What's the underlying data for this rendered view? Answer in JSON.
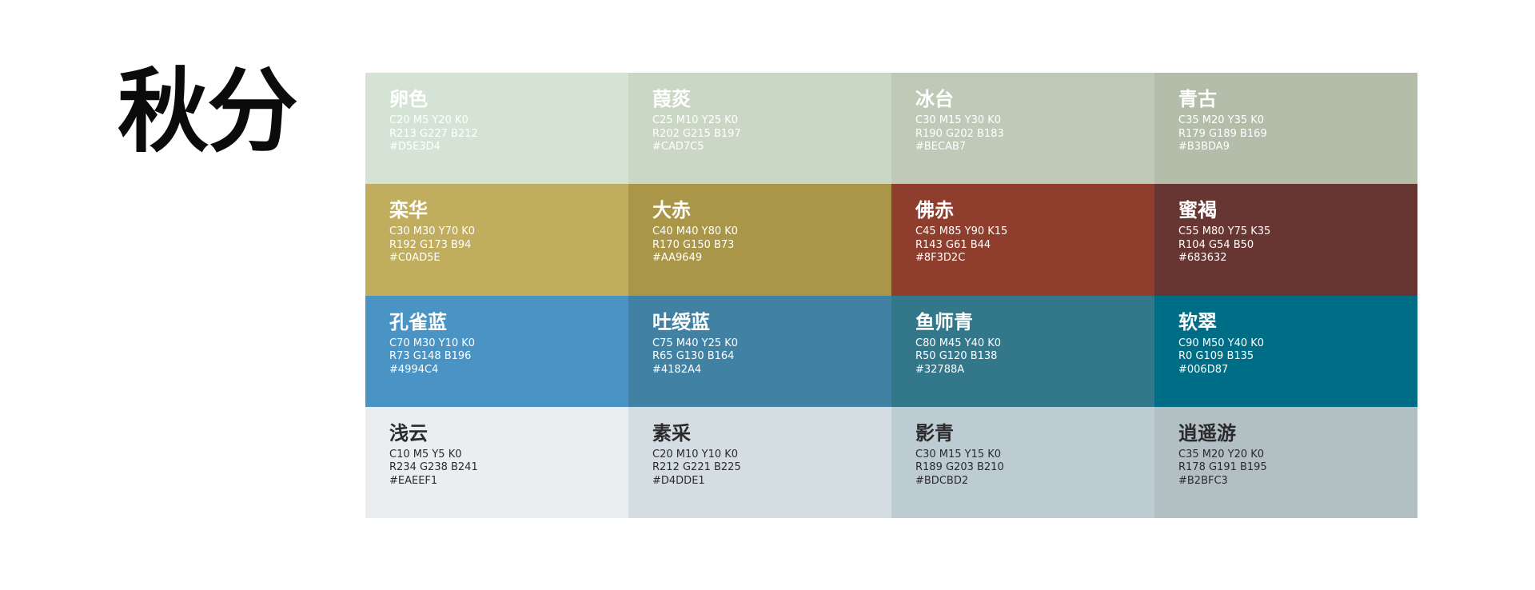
{
  "title": "秋分",
  "swatches": [
    {
      "name": "卵色",
      "cmyk": "C20 M5 Y20 K0",
      "rgb": "R213 G227 B212",
      "hex": "#D5E3D4",
      "color": "#D5E3D4",
      "text_color": "#ffffff"
    },
    {
      "name": "葭菼",
      "cmyk": "C25 M10 Y25 K0",
      "rgb": "R202 G215 B197",
      "hex": "#CAD7C5",
      "color": "#CAD7C5",
      "text_color": "#ffffff"
    },
    {
      "name": "冰台",
      "cmyk": "C30 M15 Y30 K0",
      "rgb": "R190 G202 B183",
      "hex": "#BECAB7",
      "color": "#BECAB7",
      "text_color": "#ffffff"
    },
    {
      "name": "青古",
      "cmyk": "C35 M20 Y35 K0",
      "rgb": "R179 G189 B169",
      "hex": "#B3BDA9",
      "color": "#B3BDA9",
      "text_color": "#ffffff"
    },
    {
      "name": "栾华",
      "cmyk": "C30 M30 Y70 K0",
      "rgb": "R192 G173 B94",
      "hex": "#C0AD5E",
      "color": "#C0AD5E",
      "text_color": "#ffffff"
    },
    {
      "name": "大赤",
      "cmyk": "C40 M40 Y80 K0",
      "rgb": "R170 G150 B73",
      "hex": "#AA9649",
      "color": "#AA9649",
      "text_color": "#ffffff"
    },
    {
      "name": "佛赤",
      "cmyk": "C45 M85 Y90 K15",
      "rgb": "R143 G61 B44",
      "hex": "#8F3D2C",
      "color": "#8F3D2C",
      "text_color": "#ffffff"
    },
    {
      "name": "蜜褐",
      "cmyk": "C55 M80 Y75 K35",
      "rgb": "R104 G54 B50",
      "hex": "#683632",
      "color": "#683632",
      "text_color": "#ffffff"
    },
    {
      "name": "孔雀蓝",
      "cmyk": "C70 M30 Y10 K0",
      "rgb": "R73 G148 B196",
      "hex": "#4994C4",
      "color": "#4994C4",
      "text_color": "#ffffff"
    },
    {
      "name": "吐绶蓝",
      "cmyk": "C75 M40 Y25 K0",
      "rgb": "R65 G130 B164",
      "hex": "#4182A4",
      "color": "#4182A4",
      "text_color": "#ffffff"
    },
    {
      "name": "鱼师青",
      "cmyk": "C80 M45 Y40 K0",
      "rgb": "R50 G120 B138",
      "hex": "#32788A",
      "color": "#32788A",
      "text_color": "#ffffff"
    },
    {
      "name": "软翠",
      "cmyk": "C90 M50 Y40 K0",
      "rgb": "R0 G109 B135",
      "hex": "#006D87",
      "color": "#006D87",
      "text_color": "#ffffff"
    },
    {
      "name": "浅云",
      "cmyk": "C10 M5 Y5 K0",
      "rgb": "R234 G238 B241",
      "hex": "#EAEEF1",
      "color": "#EAEEF1",
      "text_color": "#2b2b2b"
    },
    {
      "name": "素采",
      "cmyk": "C20 M10 Y10 K0",
      "rgb": "R212 G221 B225",
      "hex": "#D4DDE1",
      "color": "#D4DDE1",
      "text_color": "#2b2b2b"
    },
    {
      "name": "影青",
      "cmyk": "C30 M15 Y15 K0",
      "rgb": "R189 G203 B210",
      "hex": "#BDCBD2",
      "color": "#BDCBD2",
      "text_color": "#2b2b2b"
    },
    {
      "name": "逍遥游",
      "cmyk": "C35 M20 Y20 K0",
      "rgb": "R178 G191 B195",
      "hex": "#B2BFC3",
      "color": "#B2BFC3",
      "text_color": "#2b2b2b"
    }
  ]
}
